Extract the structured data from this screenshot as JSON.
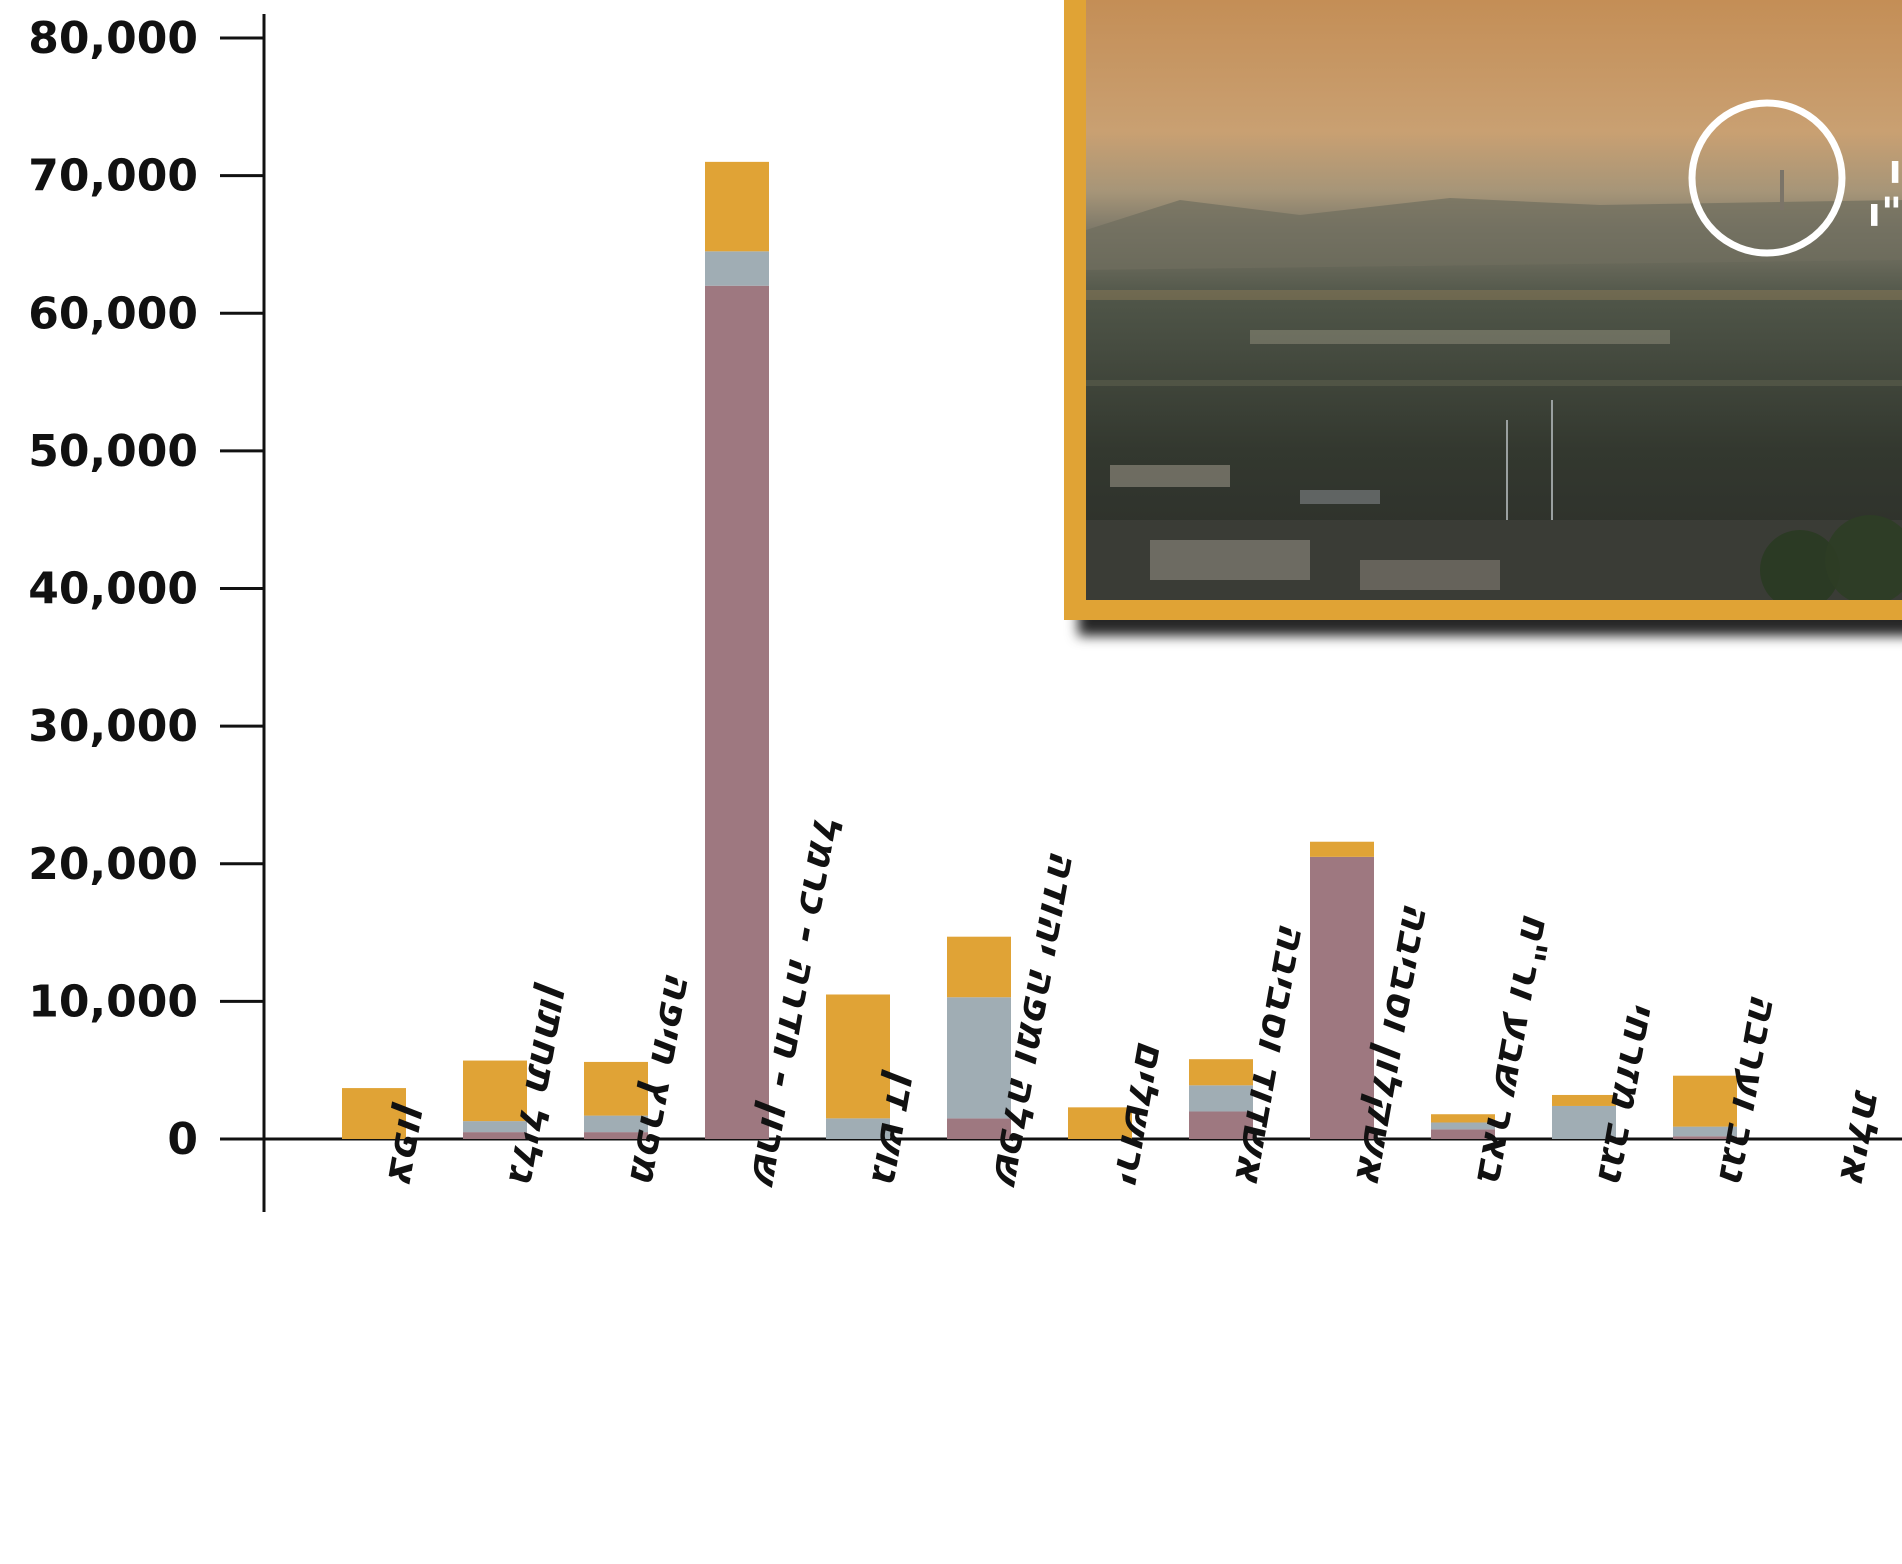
{
  "chart_data": {
    "type": "bar",
    "stacked": true,
    "title": "",
    "xlabel": "",
    "ylabel": "",
    "ylim": [
      0,
      80000
    ],
    "y_ticks": [
      0,
      10000,
      20000,
      30000,
      40000,
      50000,
      60000,
      70000,
      80000
    ],
    "y_tick_labels": [
      "0",
      "10,000",
      "20,000",
      "30,000",
      "40,000",
      "50,000",
      "60,000",
      "70,000",
      "80,000"
    ],
    "grid": false,
    "legend": "none",
    "categories": [
      "צפון",
      "גליל תחתון",
      "מפרץ חיפה",
      "שרון - חדרה - כרמל",
      "גוש דן",
      "שפלה ומפה יהודה",
      "ירושלים",
      "אשדוד וסביבה",
      "אשקלון וסביבה",
      "באר שבע ור\"ח",
      "נגב מזרחי",
      "נגב וערבה",
      "אילת"
    ],
    "series": [
      {
        "color": "#9e7880",
        "values": [
          0,
          500,
          500,
          62000,
          0,
          1500,
          0,
          2000,
          20500,
          700,
          0,
          200,
          0
        ]
      },
      {
        "color": "#a0adb4",
        "values": [
          0,
          800,
          1200,
          2500,
          1500,
          8800,
          0,
          1900,
          0,
          500,
          2400,
          700,
          0
        ]
      },
      {
        "color": "#e0a336",
        "values": [
          3700,
          4400,
          3900,
          6500,
          9000,
          4400,
          2300,
          1900,
          1100,
          600,
          800,
          3700,
          0
        ]
      }
    ],
    "inset_photo": {
      "frame_color": "#e0a336",
      "annotation_lines": [
        "ו",
        "ו\""
      ]
    }
  }
}
